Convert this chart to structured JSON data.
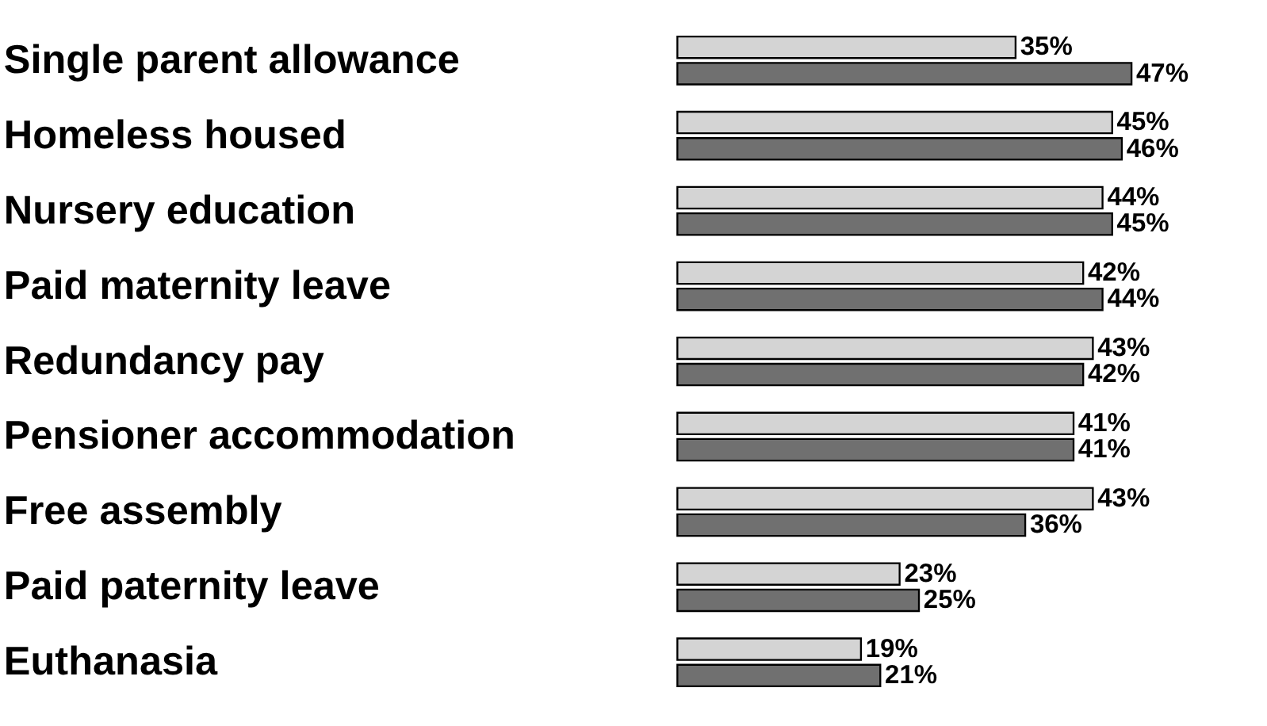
{
  "chart_data": {
    "type": "bar",
    "orientation": "horizontal",
    "categories": [
      "Single parent allowance",
      "Homeless housed",
      "Nursery education",
      "Paid maternity leave",
      "Redundancy pay",
      "Pensioner accommodation",
      "Free assembly",
      "Paid paternity leave",
      "Euthanasia"
    ],
    "series": [
      {
        "color": "#d4d4d4",
        "values": [
          35,
          45,
          44,
          42,
          43,
          41,
          43,
          23,
          19
        ],
        "value_labels": [
          "35%",
          "45%",
          "44%",
          "42%",
          "43%",
          "41%",
          "43%",
          "23%",
          "19%"
        ]
      },
      {
        "color": "#707070",
        "values": [
          47,
          46,
          45,
          44,
          42,
          41,
          36,
          25,
          21
        ],
        "value_labels": [
          "47%",
          "46%",
          "45%",
          "44%",
          "42%",
          "41%",
          "36%",
          "25%",
          "21%"
        ]
      }
    ],
    "legend": false,
    "tick_labels": "y"
  }
}
